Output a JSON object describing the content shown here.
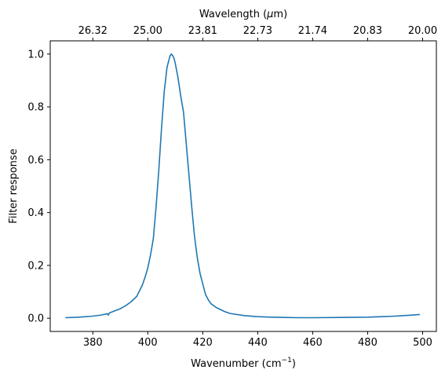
{
  "chart_data": {
    "type": "line",
    "xlabel": "Wavenumber (cm",
    "xlabel_sup": "−1",
    "xlabel_end": ")",
    "ylabel": "Filter response",
    "top_xlabel_pre": "Wavelength (",
    "top_xlabel_mu": "μ",
    "top_xlabel_post": "m)",
    "xlim": [
      364.5,
      505
    ],
    "ylim": [
      -0.05,
      1.05
    ],
    "x_ticks": [
      380,
      400,
      420,
      440,
      460,
      480,
      500
    ],
    "x_tick_labels": [
      "380",
      "400",
      "420",
      "440",
      "460",
      "480",
      "500"
    ],
    "y_ticks": [
      0.0,
      0.2,
      0.4,
      0.6,
      0.8,
      1.0
    ],
    "y_tick_labels": [
      "0.0",
      "0.2",
      "0.4",
      "0.6",
      "0.8",
      "1.0"
    ],
    "top_ticks_wavenumber": [
      380,
      400,
      420,
      440,
      460,
      480,
      500
    ],
    "top_tick_labels": [
      "26.32",
      "25.00",
      "23.81",
      "22.73",
      "21.74",
      "20.83",
      "20.00"
    ],
    "grid": false,
    "series": [
      {
        "color": "#1f77b4",
        "x": [
          370,
          375,
          380,
          383,
          385.3,
          385.6,
          386,
          388,
          390,
          392,
          394,
          396,
          398,
          399,
          400,
          401,
          402,
          403,
          404,
          405,
          406,
          407,
          408,
          408.5,
          409,
          409.5,
          410,
          411,
          412,
          413,
          414,
          415,
          416,
          417,
          418,
          419,
          420,
          421,
          422,
          423,
          425,
          428,
          430,
          435,
          440,
          445,
          450,
          455,
          460,
          470,
          480,
          485,
          490,
          495,
          499
        ],
        "y": [
          0.002,
          0.004,
          0.008,
          0.012,
          0.017,
          0.012,
          0.02,
          0.028,
          0.036,
          0.048,
          0.063,
          0.083,
          0.125,
          0.155,
          0.19,
          0.24,
          0.3,
          0.42,
          0.56,
          0.72,
          0.86,
          0.95,
          0.99,
          1.0,
          0.995,
          0.985,
          0.965,
          0.91,
          0.84,
          0.78,
          0.66,
          0.54,
          0.42,
          0.31,
          0.23,
          0.17,
          0.13,
          0.09,
          0.07,
          0.055,
          0.04,
          0.025,
          0.018,
          0.01,
          0.006,
          0.004,
          0.003,
          0.002,
          0.002,
          0.003,
          0.004,
          0.006,
          0.008,
          0.011,
          0.014
        ]
      }
    ]
  }
}
